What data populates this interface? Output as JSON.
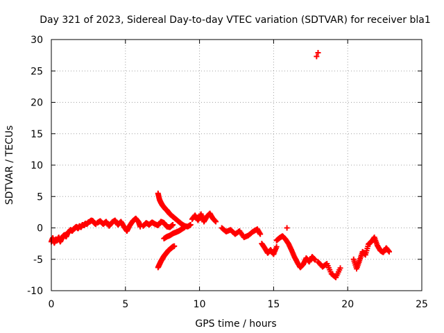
{
  "chart_data": {
    "type": "scatter",
    "title": "Day 321 of 2023, Sidereal Day-to-day VTEC variation (SDTVAR) for receiver bla1",
    "xlabel": "GPS time / hours",
    "ylabel": "SDTVAR / TECUs",
    "xlim": [
      0,
      25
    ],
    "ylim": [
      -10,
      30
    ],
    "xticks": [
      0,
      5,
      10,
      15,
      20,
      25
    ],
    "yticks": [
      -10,
      -5,
      0,
      5,
      10,
      15,
      20,
      25,
      30
    ],
    "grid": true,
    "grid_style": "dotted",
    "marker": "plus",
    "series_color": "#ff0000",
    "segments": [
      {
        "name": "start",
        "x": [
          0.0,
          0.1,
          0.2,
          0.3,
          0.4,
          0.5,
          0.6,
          0.7,
          0.8,
          0.9,
          1.0,
          1.1,
          1.2,
          1.3,
          1.4,
          1.5,
          1.6,
          1.7,
          1.8,
          1.9,
          2.0,
          2.1,
          2.2,
          2.3,
          2.4,
          2.5,
          2.6,
          2.7,
          2.8,
          2.9,
          3.0
        ],
        "y": [
          -2.2,
          -1.6,
          -2.4,
          -1.8,
          -2.0,
          -1.5,
          -2.2,
          -1.7,
          -1.3,
          -1.1,
          -1.4,
          -0.8,
          -0.6,
          -0.3,
          -0.5,
          -0.2,
          0.0,
          0.2,
          -0.1,
          0.3,
          0.1,
          0.5,
          0.4,
          0.7,
          0.6,
          0.9,
          1.0,
          1.2,
          1.1,
          0.8,
          0.6
        ]
      },
      {
        "name": "morning",
        "x": [
          3.1,
          3.3,
          3.5,
          3.7,
          3.9,
          4.1,
          4.3,
          4.5,
          4.7,
          4.9,
          5.1,
          5.3,
          5.5,
          5.7,
          5.9,
          6.0
        ],
        "y": [
          0.8,
          1.1,
          0.6,
          1.0,
          0.3,
          0.9,
          1.2,
          0.5,
          1.0,
          0.2,
          -0.5,
          0.4,
          1.1,
          1.5,
          0.9,
          0.2
        ]
      },
      {
        "name": "dip",
        "x": [
          6.2,
          6.4,
          6.6,
          6.8,
          7.0,
          7.2,
          7.4,
          7.6,
          7.8,
          8.0,
          8.2
        ],
        "y": [
          0.3,
          0.8,
          0.5,
          0.9,
          0.6,
          0.4,
          1.0,
          0.8,
          0.2,
          0.1,
          0.5
        ]
      },
      {
        "name": "rise-upper",
        "x": [
          7.2,
          7.3,
          7.4,
          7.5,
          7.6,
          7.7,
          7.8,
          7.9,
          8.0,
          8.2,
          8.4,
          8.6,
          8.8,
          9.0,
          9.2,
          9.4
        ],
        "y": [
          5.5,
          4.5,
          4.0,
          3.6,
          3.3,
          3.0,
          2.8,
          2.5,
          2.2,
          1.8,
          1.4,
          1.0,
          0.6,
          0.3,
          0.2,
          0.5
        ]
      },
      {
        "name": "rise-lower",
        "x": [
          7.2,
          7.3,
          7.4,
          7.5,
          7.6,
          7.7,
          7.8,
          7.9,
          8.0,
          8.1,
          8.2,
          8.3
        ],
        "y": [
          -6.3,
          -5.8,
          -5.3,
          -4.9,
          -4.5,
          -4.2,
          -3.9,
          -3.6,
          -3.4,
          -3.2,
          -3.0,
          -2.9
        ]
      },
      {
        "name": "cross",
        "x": [
          7.6,
          7.8,
          8.0,
          8.2,
          8.4,
          8.6,
          8.8,
          9.0
        ],
        "y": [
          -1.7,
          -1.4,
          -1.2,
          -0.9,
          -0.7,
          -0.5,
          -0.2,
          0.1
        ]
      },
      {
        "name": "noon",
        "x": [
          9.5,
          9.7,
          9.9,
          10.1,
          10.3,
          10.5,
          10.7,
          10.9,
          11.1
        ],
        "y": [
          1.4,
          2.0,
          1.2,
          2.2,
          1.0,
          1.8,
          2.3,
          1.5,
          1.0
        ]
      },
      {
        "name": "afternoon",
        "x": [
          11.5,
          11.8,
          12.1,
          12.4,
          12.7,
          13.0,
          13.3,
          13.6,
          13.9,
          14.1
        ],
        "y": [
          0.0,
          -0.6,
          -0.3,
          -1.0,
          -0.5,
          -1.5,
          -1.2,
          -0.6,
          -0.2,
          -1.0
        ]
      },
      {
        "name": "evening-a",
        "x": [
          14.2,
          14.4,
          14.6,
          14.8,
          15.0,
          15.2
        ],
        "y": [
          -2.5,
          -3.2,
          -4.0,
          -3.5,
          -4.2,
          -3.0
        ]
      },
      {
        "name": "evening-b",
        "x": [
          15.2,
          15.4,
          15.6,
          15.8,
          16.0,
          16.2,
          16.4,
          16.6,
          16.8,
          17.0,
          17.2,
          17.4,
          17.6,
          17.8
        ],
        "y": [
          -2.0,
          -1.6,
          -1.3,
          -1.8,
          -2.5,
          -3.5,
          -4.6,
          -5.5,
          -6.3,
          -5.8,
          -4.8,
          -5.4,
          -4.6,
          -5.1
        ]
      },
      {
        "name": "spike",
        "x": [
          15.9,
          17.9,
          18.0
        ],
        "y": [
          0.0,
          27.3,
          27.9
        ]
      },
      {
        "name": "night-a",
        "x": [
          18.0,
          18.3,
          18.6,
          18.9,
          19.2,
          19.5
        ],
        "y": [
          -5.4,
          -6.2,
          -5.7,
          -7.3,
          -7.9,
          -6.4
        ]
      },
      {
        "name": "night-b",
        "x": [
          20.4,
          20.6,
          20.8,
          21.0,
          21.2,
          21.4,
          21.6,
          21.8,
          22.0,
          22.2,
          22.4,
          22.6,
          22.8
        ],
        "y": [
          -5.0,
          -6.5,
          -5.2,
          -3.8,
          -4.3,
          -2.6,
          -2.2,
          -1.5,
          -2.8,
          -3.6,
          -3.9,
          -3.2,
          -3.8
        ]
      }
    ]
  }
}
